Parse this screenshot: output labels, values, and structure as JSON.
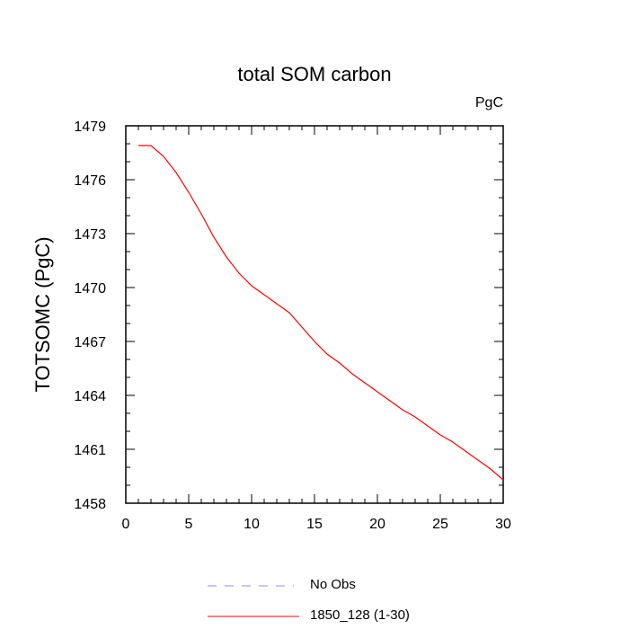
{
  "chart_data": {
    "type": "line",
    "title": "total SOM carbon",
    "units_label": "PgC",
    "ylabel": "TOTSOMC  (PgC)",
    "xlabel": "",
    "xlim": [
      0,
      30
    ],
    "ylim": [
      1458,
      1479
    ],
    "xticks": [
      0,
      5,
      10,
      15,
      20,
      25,
      30
    ],
    "yticks": [
      1458,
      1461,
      1464,
      1467,
      1470,
      1473,
      1476,
      1479
    ],
    "xtick_labels": [
      "0",
      "5",
      "10",
      "15",
      "20",
      "25",
      "30"
    ],
    "ytick_labels": [
      "1458",
      "1461",
      "1464",
      "1467",
      "1470",
      "1473",
      "1476",
      "1479"
    ],
    "series": [
      {
        "name": "1850_128 (1-30)",
        "color": "#ff0000",
        "style": "solid",
        "x": [
          1,
          2,
          3,
          4,
          5,
          6,
          7,
          8,
          9,
          10,
          11,
          12,
          13,
          14,
          15,
          16,
          17,
          18,
          19,
          20,
          21,
          22,
          23,
          24,
          25,
          26,
          27,
          28,
          29,
          30
        ],
        "y": [
          1477.9,
          1477.9,
          1477.3,
          1476.4,
          1475.3,
          1474.1,
          1472.8,
          1471.7,
          1470.8,
          1470.1,
          1469.6,
          1469.1,
          1468.6,
          1467.8,
          1467.0,
          1466.3,
          1465.8,
          1465.2,
          1464.7,
          1464.2,
          1463.7,
          1463.2,
          1462.8,
          1462.3,
          1461.8,
          1461.4,
          1460.9,
          1460.4,
          1459.9,
          1459.3
        ]
      }
    ],
    "legend": [
      {
        "label": "No Obs",
        "color": "#8c8cf0",
        "style": "dashed"
      },
      {
        "label": "1850_128 (1-30)",
        "color": "#ff0000",
        "style": "solid"
      }
    ]
  }
}
